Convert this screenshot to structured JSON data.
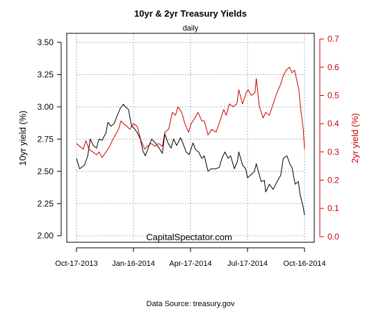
{
  "chart_data": {
    "type": "line",
    "title": "10yr & 2yr Treasury Yields",
    "subtitle": "daily",
    "watermark": "CapitalSpectator.com",
    "source": "Data Source: treasury.gov",
    "x_ticks": [
      "Oct-17-2013",
      "Jan-16-2014",
      "Apr-17-2014",
      "Jul-17-2014",
      "Oct-16-2014"
    ],
    "x_range": [
      "2013-10-17",
      "2014-10-16"
    ],
    "left_axis": {
      "label": "10yr yield (%)",
      "ylim": [
        1.95,
        3.57
      ],
      "ticks": [
        "2.00",
        "2.25",
        "2.50",
        "2.75",
        "3.00",
        "3.25",
        "3.50"
      ],
      "color": "#000000"
    },
    "right_axis": {
      "label": "2yr yield (%)",
      "ylim": [
        -0.02,
        0.72
      ],
      "ticks": [
        "0.0",
        "0.1",
        "0.2",
        "0.3",
        "0.4",
        "0.5",
        "0.6",
        "0.7"
      ],
      "color": "#cc0000"
    },
    "grid": true,
    "series": [
      {
        "color": "#000000",
        "axis": "left",
        "points": [
          [
            "2013-10-17",
            2.6
          ],
          [
            "2013-10-22",
            2.52
          ],
          [
            "2013-10-25",
            2.53
          ],
          [
            "2013-10-30",
            2.55
          ],
          [
            "2013-11-04",
            2.62
          ],
          [
            "2013-11-08",
            2.75
          ],
          [
            "2013-11-13",
            2.7
          ],
          [
            "2013-11-18",
            2.68
          ],
          [
            "2013-11-22",
            2.75
          ],
          [
            "2013-11-27",
            2.74
          ],
          [
            "2013-12-03",
            2.8
          ],
          [
            "2013-12-06",
            2.88
          ],
          [
            "2013-12-11",
            2.85
          ],
          [
            "2013-12-16",
            2.87
          ],
          [
            "2013-12-20",
            2.92
          ],
          [
            "2013-12-26",
            2.99
          ],
          [
            "2013-12-31",
            3.02
          ],
          [
            "2014-01-03",
            3.0
          ],
          [
            "2014-01-08",
            2.98
          ],
          [
            "2014-01-13",
            2.85
          ],
          [
            "2014-01-16",
            2.84
          ],
          [
            "2014-01-22",
            2.8
          ],
          [
            "2014-01-27",
            2.75
          ],
          [
            "2014-01-31",
            2.66
          ],
          [
            "2014-02-04",
            2.62
          ],
          [
            "2014-02-10",
            2.7
          ],
          [
            "2014-02-14",
            2.75
          ],
          [
            "2014-02-20",
            2.72
          ],
          [
            "2014-02-26",
            2.68
          ],
          [
            "2014-03-03",
            2.64
          ],
          [
            "2014-03-07",
            2.79
          ],
          [
            "2014-03-12",
            2.72
          ],
          [
            "2014-03-17",
            2.68
          ],
          [
            "2014-03-21",
            2.75
          ],
          [
            "2014-03-26",
            2.7
          ],
          [
            "2014-04-01",
            2.76
          ],
          [
            "2014-04-04",
            2.73
          ],
          [
            "2014-04-10",
            2.65
          ],
          [
            "2014-04-15",
            2.63
          ],
          [
            "2014-04-21",
            2.72
          ],
          [
            "2014-04-25",
            2.67
          ],
          [
            "2014-04-30",
            2.65
          ],
          [
            "2014-05-05",
            2.6
          ],
          [
            "2014-05-09",
            2.62
          ],
          [
            "2014-05-15",
            2.5
          ],
          [
            "2014-05-20",
            2.52
          ],
          [
            "2014-05-27",
            2.52
          ],
          [
            "2014-06-02",
            2.53
          ],
          [
            "2014-06-06",
            2.6
          ],
          [
            "2014-06-11",
            2.65
          ],
          [
            "2014-06-16",
            2.6
          ],
          [
            "2014-06-20",
            2.62
          ],
          [
            "2014-06-26",
            2.52
          ],
          [
            "2014-07-01",
            2.58
          ],
          [
            "2014-07-03",
            2.65
          ],
          [
            "2014-07-09",
            2.55
          ],
          [
            "2014-07-14",
            2.52
          ],
          [
            "2014-07-17",
            2.45
          ],
          [
            "2014-07-22",
            2.47
          ],
          [
            "2014-07-28",
            2.5
          ],
          [
            "2014-07-31",
            2.56
          ],
          [
            "2014-08-05",
            2.47
          ],
          [
            "2014-08-08",
            2.42
          ],
          [
            "2014-08-13",
            2.43
          ],
          [
            "2014-08-15",
            2.34
          ],
          [
            "2014-08-21",
            2.4
          ],
          [
            "2014-08-27",
            2.36
          ],
          [
            "2014-09-02",
            2.42
          ],
          [
            "2014-09-08",
            2.47
          ],
          [
            "2014-09-12",
            2.6
          ],
          [
            "2014-09-18",
            2.62
          ],
          [
            "2014-09-23",
            2.55
          ],
          [
            "2014-09-26",
            2.53
          ],
          [
            "2014-10-01",
            2.4
          ],
          [
            "2014-10-06",
            2.42
          ],
          [
            "2014-10-09",
            2.32
          ],
          [
            "2014-10-14",
            2.22
          ],
          [
            "2014-10-16",
            2.16
          ]
        ]
      },
      {
        "color": "#cc0000",
        "axis": "right",
        "points": [
          [
            "2013-10-17",
            0.33
          ],
          [
            "2013-10-22",
            0.32
          ],
          [
            "2013-10-28",
            0.31
          ],
          [
            "2013-11-01",
            0.34
          ],
          [
            "2013-11-06",
            0.31
          ],
          [
            "2013-11-12",
            0.3
          ],
          [
            "2013-11-18",
            0.29
          ],
          [
            "2013-11-22",
            0.3
          ],
          [
            "2013-11-27",
            0.28
          ],
          [
            "2013-12-03",
            0.3
          ],
          [
            "2013-12-09",
            0.32
          ],
          [
            "2013-12-13",
            0.34
          ],
          [
            "2013-12-18",
            0.36
          ],
          [
            "2013-12-23",
            0.38
          ],
          [
            "2013-12-27",
            0.41
          ],
          [
            "2013-12-31",
            0.4
          ],
          [
            "2014-01-06",
            0.39
          ],
          [
            "2014-01-10",
            0.38
          ],
          [
            "2014-01-16",
            0.4
          ],
          [
            "2014-01-22",
            0.39
          ],
          [
            "2014-01-28",
            0.34
          ],
          [
            "2014-02-03",
            0.31
          ],
          [
            "2014-02-07",
            0.32
          ],
          [
            "2014-02-13",
            0.33
          ],
          [
            "2014-02-19",
            0.32
          ],
          [
            "2014-02-25",
            0.33
          ],
          [
            "2014-03-03",
            0.32
          ],
          [
            "2014-03-07",
            0.37
          ],
          [
            "2014-03-13",
            0.38
          ],
          [
            "2014-03-19",
            0.44
          ],
          [
            "2014-03-24",
            0.43
          ],
          [
            "2014-03-28",
            0.46
          ],
          [
            "2014-04-03",
            0.44
          ],
          [
            "2014-04-08",
            0.4
          ],
          [
            "2014-04-14",
            0.37
          ],
          [
            "2014-04-18",
            0.4
          ],
          [
            "2014-04-24",
            0.42
          ],
          [
            "2014-04-29",
            0.44
          ],
          [
            "2014-05-05",
            0.41
          ],
          [
            "2014-05-09",
            0.41
          ],
          [
            "2014-05-15",
            0.36
          ],
          [
            "2014-05-21",
            0.38
          ],
          [
            "2014-05-28",
            0.37
          ],
          [
            "2014-06-03",
            0.41
          ],
          [
            "2014-06-09",
            0.45
          ],
          [
            "2014-06-13",
            0.43
          ],
          [
            "2014-06-18",
            0.47
          ],
          [
            "2014-06-24",
            0.46
          ],
          [
            "2014-06-30",
            0.47
          ],
          [
            "2014-07-03",
            0.52
          ],
          [
            "2014-07-09",
            0.47
          ],
          [
            "2014-07-15",
            0.51
          ],
          [
            "2014-07-18",
            0.52
          ],
          [
            "2014-07-23",
            0.5
          ],
          [
            "2014-07-29",
            0.51
          ],
          [
            "2014-07-31",
            0.56
          ],
          [
            "2014-08-05",
            0.46
          ],
          [
            "2014-08-11",
            0.42
          ],
          [
            "2014-08-15",
            0.44
          ],
          [
            "2014-08-21",
            0.43
          ],
          [
            "2014-08-27",
            0.47
          ],
          [
            "2014-09-02",
            0.51
          ],
          [
            "2014-09-08",
            0.54
          ],
          [
            "2014-09-12",
            0.57
          ],
          [
            "2014-09-17",
            0.59
          ],
          [
            "2014-09-22",
            0.6
          ],
          [
            "2014-09-26",
            0.58
          ],
          [
            "2014-09-30",
            0.59
          ],
          [
            "2014-10-03",
            0.56
          ],
          [
            "2014-10-07",
            0.52
          ],
          [
            "2014-10-10",
            0.45
          ],
          [
            "2014-10-14",
            0.38
          ],
          [
            "2014-10-16",
            0.31
          ]
        ]
      }
    ]
  }
}
